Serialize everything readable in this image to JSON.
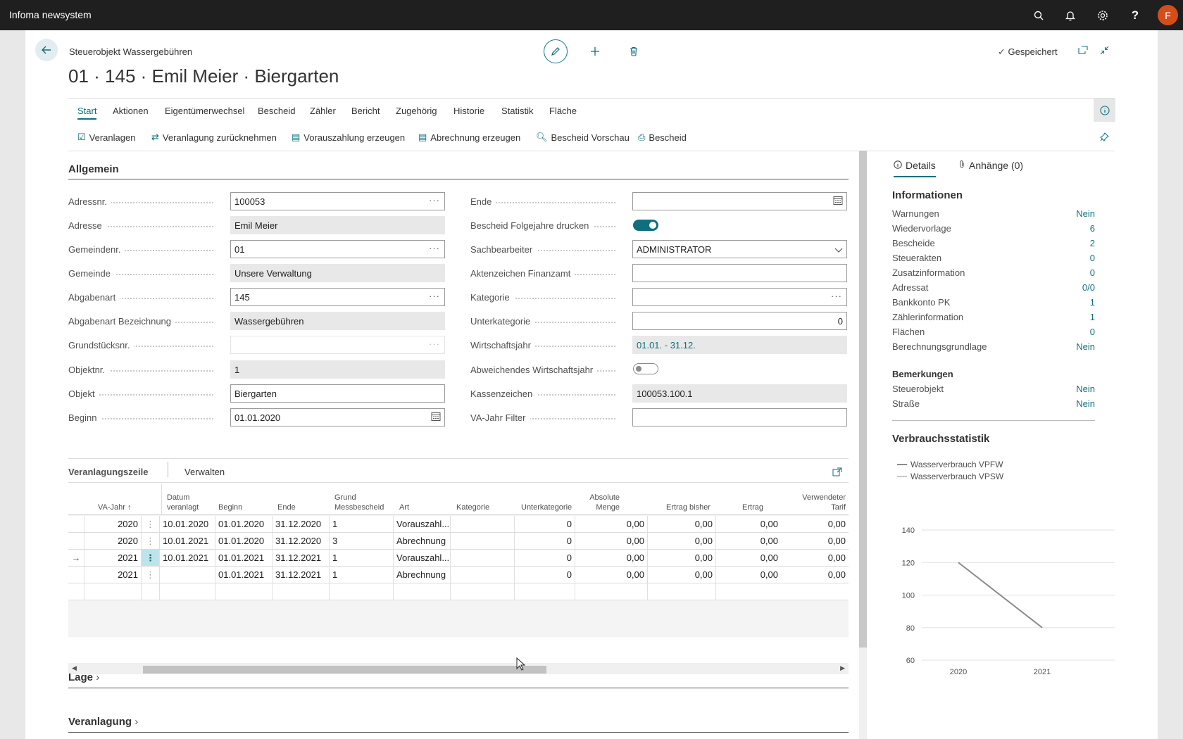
{
  "app": {
    "title": "Infoma newsystem",
    "user_initial": "F"
  },
  "header": {
    "caption": "Steuerobjekt Wassergebühren",
    "title": "01 · 145 · Emil Meier · Biergarten",
    "saved_label": "Gespeichert"
  },
  "menu": [
    {
      "label": "Start",
      "active": true
    },
    {
      "label": "Aktionen"
    },
    {
      "label": "Eigentümerwechsel"
    },
    {
      "label": "Bescheid"
    },
    {
      "label": "Zähler"
    },
    {
      "label": "Bericht"
    },
    {
      "label": "Zugehörig"
    },
    {
      "label": "Historie"
    },
    {
      "label": "Statistik"
    },
    {
      "label": "Fläche"
    }
  ],
  "actions": [
    {
      "label": "Veranlagen",
      "icon": "check-doc-icon"
    },
    {
      "label": "Veranlagung zurücknehmen",
      "icon": "swap-icon"
    },
    {
      "label": "Vorauszahlung erzeugen",
      "icon": "doc-create-icon"
    },
    {
      "label": "Abrechnung erzeugen",
      "icon": "doc-create-icon"
    },
    {
      "label": "Bescheid Vorschau",
      "icon": "preview-icon"
    },
    {
      "label": "Bescheid",
      "icon": "print-icon"
    }
  ],
  "general": {
    "heading": "Allgemein",
    "left": [
      {
        "label": "Adressnr.",
        "value": "100053"
      },
      {
        "label": "Adresse",
        "value": "Emil Meier"
      },
      {
        "label": "Gemeindenr.",
        "value": "01"
      },
      {
        "label": "Gemeinde",
        "value": "Unsere Verwaltung"
      },
      {
        "label": "Abgabenart",
        "value": "145"
      },
      {
        "label": "Abgabenart Bezeichnung",
        "value": "Wassergebühren"
      },
      {
        "label": "Grundstücksnr.",
        "value": ""
      },
      {
        "label": "Objektnr.",
        "value": "1"
      },
      {
        "label": "Objekt",
        "value": "Biergarten"
      },
      {
        "label": "Beginn",
        "value": "01.01.2020"
      }
    ],
    "right": [
      {
        "label": "Ende",
        "value": ""
      },
      {
        "label": "Bescheid Folgejahre drucken",
        "toggle": true
      },
      {
        "label": "Sachbearbeiter",
        "value": "ADMINISTRATOR"
      },
      {
        "label": "Aktenzeichen Finanzamt",
        "value": ""
      },
      {
        "label": "Kategorie",
        "value": ""
      },
      {
        "label": "Unterkategorie",
        "value": "0"
      },
      {
        "label": "Wirtschaftsjahr",
        "value": "01.01. - 31.12."
      },
      {
        "label": "Abweichendes Wirtschaftsjahr",
        "toggle": false
      },
      {
        "label": "Kassenzeichen",
        "value": "100053.100.1"
      },
      {
        "label": "VA-Jahr Filter",
        "value": ""
      }
    ]
  },
  "lines": {
    "title": "Veranlagungszeile",
    "tab": "Verwalten",
    "columns": {
      "va_jahr": "VA-Jahr",
      "datum1": "Datum",
      "datum2": "veranlagt",
      "beginn": "Beginn",
      "ende": "Ende",
      "grund1": "Grund",
      "grund2": "Messbescheid",
      "art": "Art",
      "kategorie": "Kategorie",
      "unterkategorie": "Unterkategorie",
      "menge1": "Absolute",
      "menge2": "Menge",
      "ertrag_bisher": "Ertrag bisher",
      "ertrag": "Ertrag",
      "tarif1": "Verwendeter",
      "tarif2": "Tarif"
    },
    "rows": [
      {
        "va_jahr": "2020",
        "datum": "10.01.2020",
        "beginn": "01.01.2020",
        "ende": "31.12.2020",
        "grund": "1",
        "art": "Vorauszahl...",
        "kategorie": "",
        "unterkategorie": "0",
        "menge": "0,00",
        "ertrag_bisher": "0,00",
        "ertrag": "0,00",
        "tarif": "0,00"
      },
      {
        "va_jahr": "2020",
        "datum": "10.01.2021",
        "beginn": "01.01.2020",
        "ende": "31.12.2020",
        "grund": "3",
        "art": "Abrechnung",
        "kategorie": "",
        "unterkategorie": "0",
        "menge": "0,00",
        "ertrag_bisher": "0,00",
        "ertrag": "0,00",
        "tarif": "0,00"
      },
      {
        "va_jahr": "2021",
        "datum": "10.01.2021",
        "beginn": "01.01.2021",
        "ende": "31.12.2021",
        "grund": "1",
        "art": "Vorauszahl...",
        "kategorie": "",
        "unterkategorie": "0",
        "menge": "0,00",
        "ertrag_bisher": "0,00",
        "ertrag": "0,00",
        "tarif": "0,00",
        "selected": true
      },
      {
        "va_jahr": "2021",
        "datum": "",
        "beginn": "01.01.2021",
        "ende": "31.12.2021",
        "grund": "1",
        "art": "Abrechnung",
        "kategorie": "",
        "unterkategorie": "0",
        "menge": "0,00",
        "ertrag_bisher": "0,00",
        "ertrag": "0,00",
        "tarif": "0,00"
      }
    ]
  },
  "sections": {
    "lage": "Lage",
    "veranlagung": "Veranlagung"
  },
  "factbox": {
    "tab_details": "Details",
    "tab_attachments": "Anhänge (0)",
    "info_heading": "Informationen",
    "info": [
      {
        "label": "Warnungen",
        "value": "Nein"
      },
      {
        "label": "Wiedervorlage",
        "value": "6"
      },
      {
        "label": "Bescheide",
        "value": "2"
      },
      {
        "label": "Steuerakten",
        "value": "0"
      },
      {
        "label": "Zusatzinformation",
        "value": "0"
      },
      {
        "label": "Adressat",
        "value": "0/0"
      },
      {
        "label": "Bankkonto PK",
        "value": "1"
      },
      {
        "label": "Zählerinformation",
        "value": "1"
      },
      {
        "label": "Flächen",
        "value": "0"
      },
      {
        "label": "Berechnungsgrundlage",
        "value": "Nein"
      }
    ],
    "remarks_heading": "Bemerkungen",
    "remarks": [
      {
        "label": "Steuerobjekt",
        "value": "Nein"
      },
      {
        "label": "Straße",
        "value": "Nein"
      }
    ],
    "stats_heading": "Verbrauchsstatistik"
  },
  "chart_data": {
    "type": "line",
    "x": [
      "2020",
      "2021"
    ],
    "series": [
      {
        "name": "Wasserverbrauch VPFW",
        "values": [
          120,
          80
        ],
        "color": "#8a8a8a"
      },
      {
        "name": "Wasserverbrauch VPSW",
        "values": [
          null,
          null
        ],
        "color": "#c8c8c8"
      }
    ],
    "yticks": [
      60,
      80,
      100,
      120,
      140
    ],
    "ylim": [
      60,
      140
    ],
    "grid": true,
    "legend": "top-left"
  },
  "colors": {
    "accent": "#0f6f7c",
    "topbar": "#1f1f1f",
    "avatar": "#d54d1a"
  }
}
